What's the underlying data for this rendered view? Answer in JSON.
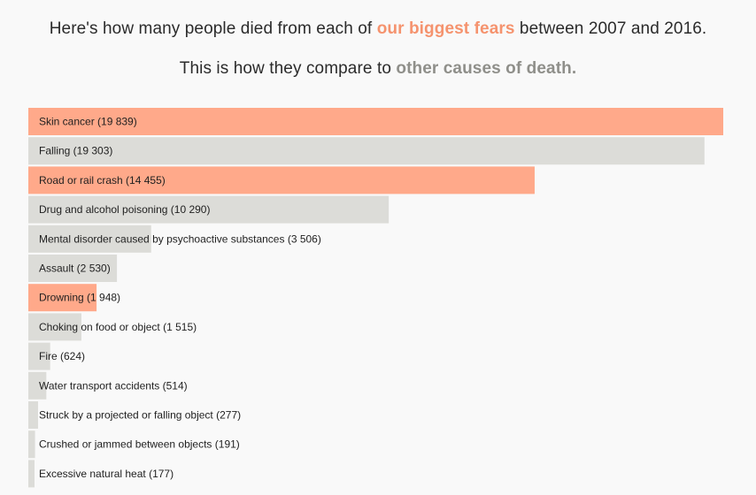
{
  "header": {
    "line1_prefix": "Here's how many people died from each of ",
    "line1_highlight": "our biggest fears",
    "line1_suffix": " between 2007 and 2016.",
    "line2_prefix": "This is how they compare to ",
    "line2_highlight": "other causes of death."
  },
  "colors": {
    "fear": "#ffa98a",
    "other": "#dcdcd8",
    "fear_text": "#f5936e",
    "other_text": "#8f8f8a"
  },
  "chart_data": {
    "type": "bar",
    "orientation": "horizontal",
    "title": "",
    "xlabel": "",
    "ylabel": "",
    "xlim": [
      0,
      19839
    ],
    "grid": false,
    "legend": "none",
    "categories": [
      "Skin cancer",
      "Falling",
      "Road or rail crash",
      "Drug and alcohol poisoning",
      "Mental disorder caused by psychoactive substances",
      "Assault",
      "Drowning",
      "Choking on food or object",
      "Fire",
      "Water transport accidents",
      "Struck by a projected or falling object",
      "Crushed or jammed between objects",
      "Excessive natural heat"
    ],
    "values": [
      19839,
      19303,
      14455,
      10290,
      3506,
      2530,
      1948,
      1515,
      624,
      514,
      277,
      191,
      177
    ],
    "value_labels": [
      "19 839",
      "19 303",
      "14 455",
      "10 290",
      "3 506",
      "2 530",
      "1 948",
      "1 515",
      "624",
      "514",
      "277",
      "191",
      "177"
    ],
    "group": [
      "fear",
      "other",
      "fear",
      "other",
      "other",
      "other",
      "fear",
      "other",
      "other",
      "other",
      "other",
      "other",
      "other"
    ]
  }
}
